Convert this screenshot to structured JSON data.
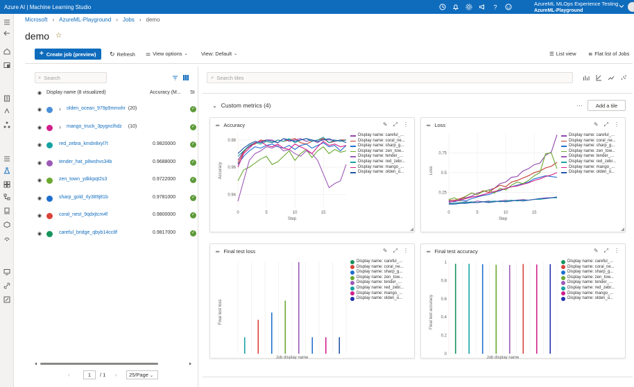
{
  "app": {
    "title": "Azure AI | Machine Learning Studio",
    "account_line1": "AzureML MLOps Experience Testing",
    "account_line2": "AzureML-Playground"
  },
  "breadcrumb": [
    "Microsoft",
    "AzureML-Playground",
    "Jobs",
    "demo"
  ],
  "page": {
    "title": "demo"
  },
  "toolbar": {
    "create_job": "Create job (preview)",
    "refresh": "Refresh",
    "view_options": "View options",
    "view_default": "View: Default",
    "list_view": "List view",
    "flat_list": "Flat list of Jobs"
  },
  "left": {
    "search_placeholder": "Search",
    "col_name": "Display name (8 visualized)",
    "col_accuracy": "Accuracy (M...",
    "col_status": "St",
    "rows": [
      {
        "name": "olden_ocean_979p9mmxhr",
        "count": "(20)",
        "accuracy": "",
        "color": "#4a90d9",
        "group": true
      },
      {
        "name": "mango_truck_3pygnclhdz",
        "count": "(10)",
        "accuracy": "",
        "color": "#d11f8b",
        "group": true
      },
      {
        "name": "red_zebra_kmdn8xyl7t",
        "count": "",
        "accuracy": "0.9820000",
        "color": "#17a2a2",
        "group": false
      },
      {
        "name": "tender_hat_p8wshvs34b",
        "count": "",
        "accuracy": "0.9688000",
        "color": "#9b59b6",
        "group": false
      },
      {
        "name": "zen_town_ydkkpqt2s3",
        "count": "",
        "accuracy": "0.9722000",
        "color": "#6aa830",
        "group": false
      },
      {
        "name": "sharp_gold_rly389j81b",
        "count": "",
        "accuracy": "0.9781000",
        "color": "#1f6fcf",
        "group": false
      },
      {
        "name": "coral_nest_9qdxjtcm4f",
        "count": "",
        "accuracy": "0.9800000",
        "color": "#d9433a",
        "group": false
      },
      {
        "name": "careful_bridge_qbyb14cc8f",
        "count": "",
        "accuracy": "0.9817000",
        "color": "#16945c",
        "group": false
      }
    ],
    "pager": {
      "page": "1",
      "of": "/ 1",
      "per_page": "25/Page"
    }
  },
  "right": {
    "search_placeholder": "Search tiles",
    "section_title": "Custom metrics (4)",
    "add_tile": "Add a tile"
  },
  "icons": {
    "topbar": [
      "history-icon",
      "bell-icon",
      "gear-icon",
      "megaphone-icon",
      "help-icon",
      "smiley-icon"
    ]
  },
  "legend_labels_lines": [
    {
      "label": "Display name: careful_...",
      "color": "#8e44ad"
    },
    {
      "label": "Display name: coral_ne...",
      "color": "#c0392b"
    },
    {
      "label": "Display name: sharp_g...",
      "color": "#1f6fcf"
    },
    {
      "label": "Display name: zen_tow...",
      "color": "#6aa830"
    },
    {
      "label": "Display name: tender_...",
      "color": "#9b59b6"
    },
    {
      "label": "Display name: red_zebr...",
      "color": "#17a2a2"
    },
    {
      "label": "Display name: mango_...",
      "color": "#d11f8b"
    },
    {
      "label": "Display name: olden_o...",
      "color": "#2255aa"
    }
  ],
  "legend_labels_lines_b": [
    {
      "label": "Display name: careful_...",
      "color": "#8e44ad"
    },
    {
      "label": "Display name: coral_ne...",
      "color": "#c0392b"
    },
    {
      "label": "Display name: sharp_g...",
      "color": "#1f6fcf"
    },
    {
      "label": "Display name: zen_tow...",
      "color": "#6aa830"
    },
    {
      "label": "Display name: tender_...",
      "color": "#9b59b6"
    },
    {
      "label": "Display name: red_zebr...",
      "color": "#17a2a2"
    },
    {
      "label": "Display name: mango_...",
      "color": "#d11f8b"
    },
    {
      "label": "Display name: olden_o...",
      "color": "#2255aa"
    }
  ],
  "legend_labels_bars": [
    {
      "label": "Display name: careful_...",
      "color": "#16945c"
    },
    {
      "label": "Display name: coral_ne...",
      "color": "#d9433a"
    },
    {
      "label": "Display name: sharp_g...",
      "color": "#1f6fcf"
    },
    {
      "label": "Display name: zen_tow...",
      "color": "#6aa830"
    },
    {
      "label": "Display name: tender_...",
      "color": "#9b59b6"
    },
    {
      "label": "Display name: red_zebr...",
      "color": "#17a2a2"
    },
    {
      "label": "Display name: mango_...",
      "color": "#d11f8b"
    },
    {
      "label": "Display name: olden_o...",
      "color": "#2233aa"
    }
  ],
  "legend_labels_bars_b": [
    {
      "label": "Display name: careful_...",
      "color": "#16945c"
    },
    {
      "label": "Display name: coral_ne...",
      "color": "#d9433a"
    },
    {
      "label": "Display name: sharp_g...",
      "color": "#1f6fcf"
    },
    {
      "label": "Display name: zen_tow...",
      "color": "#6aa830"
    },
    {
      "label": "Display name: tender_...",
      "color": "#9b59b6"
    },
    {
      "label": "Display name: red_zebr...",
      "color": "#17a2a2"
    },
    {
      "label": "Display name: mango_...",
      "color": "#d11f8b"
    },
    {
      "label": "Display name: olden_o...",
      "color": "#2233aa"
    }
  ],
  "chart_data": [
    {
      "type": "line",
      "title": "Accuracy",
      "xlabel": "Step",
      "ylabel": "Accuracy",
      "xlim": [
        0,
        19
      ],
      "ylim": [
        0.93,
        0.985
      ],
      "xticks": [
        0,
        5,
        10,
        15
      ],
      "yticks": [
        0.94,
        0.96,
        0.98
      ],
      "xtick_labels": [
        "0",
        "5",
        "10",
        "15"
      ],
      "ytick_labels": [
        "0.94",
        "0.96",
        "0.98"
      ],
      "series": [
        {
          "color": "#8e44ad",
          "values": [
            0.965,
            0.972,
            0.975,
            0.978,
            0.979,
            0.98,
            0.98,
            0.978,
            0.981,
            0.979,
            0.98,
            0.981,
            0.979,
            0.98,
            0.978,
            0.981,
            0.98,
            0.98,
            0.979,
            0.98
          ]
        },
        {
          "color": "#c0392b",
          "values": [
            0.963,
            0.971,
            0.976,
            0.977,
            0.98,
            0.979,
            0.978,
            0.98,
            0.979,
            0.98,
            0.981,
            0.978,
            0.977,
            0.979,
            0.98,
            0.981,
            0.978,
            0.979,
            0.98,
            0.98
          ]
        },
        {
          "color": "#1f6fcf",
          "values": [
            0.962,
            0.968,
            0.972,
            0.975,
            0.974,
            0.976,
            0.977,
            0.975,
            0.974,
            0.976,
            0.973,
            0.976,
            0.977,
            0.974,
            0.976,
            0.978,
            0.975,
            0.976,
            0.972,
            0.976
          ]
        },
        {
          "color": "#6aa830",
          "values": [
            0.95,
            0.958,
            0.96,
            0.963,
            0.966,
            0.968,
            0.962,
            0.964,
            0.968,
            0.972,
            0.965,
            0.97,
            0.973,
            0.967,
            0.972,
            0.975,
            0.97,
            0.973,
            0.971,
            0.972
          ]
        },
        {
          "color": "#9b59b6",
          "values": [
            0.935,
            0.95,
            0.965,
            0.97,
            0.972,
            0.975,
            0.974,
            0.976,
            0.972,
            0.973,
            0.97,
            0.968,
            0.972,
            0.97,
            0.965,
            0.955,
            0.945,
            0.948,
            0.95,
            0.962
          ]
        },
        {
          "color": "#17a2a2",
          "values": [
            0.968,
            0.972,
            0.976,
            0.978,
            0.977,
            0.979,
            0.978,
            0.98,
            0.979,
            0.981,
            0.978,
            0.98,
            0.981,
            0.979,
            0.98,
            0.982,
            0.978,
            0.98,
            0.979,
            0.98
          ]
        },
        {
          "color": "#d11f8b",
          "values": [
            0.96,
            0.97,
            0.974,
            0.978,
            0.979,
            0.976,
            0.975,
            0.977,
            0.974,
            0.973,
            0.977,
            0.975,
            0.973,
            0.97,
            0.975,
            0.979,
            0.976,
            0.977,
            0.975,
            0.976
          ]
        },
        {
          "color": "#2255aa",
          "values": [
            0.97,
            0.974,
            0.977,
            0.979,
            0.978,
            0.98,
            0.979,
            0.978,
            0.981,
            0.98,
            0.979,
            0.98,
            0.981,
            0.98,
            0.979,
            0.98,
            0.981,
            0.979,
            0.98,
            0.978
          ]
        }
      ]
    },
    {
      "type": "line",
      "title": "Loss",
      "xlabel": "Step",
      "ylabel": "Loss",
      "xlim": [
        0,
        19
      ],
      "ylim": [
        0.05,
        1.0
      ],
      "xticks": [
        0,
        5,
        10,
        15
      ],
      "yticks": [
        0.25,
        0.5,
        0.75
      ],
      "xtick_labels": [
        "0",
        "5",
        "10",
        "15"
      ],
      "ytick_labels": [
        "0.25",
        "0.5",
        "0.75"
      ],
      "series": [
        {
          "color": "#8e44ad",
          "values": [
            0.14,
            0.13,
            0.16,
            0.18,
            0.2,
            0.24,
            0.26,
            0.28,
            0.3,
            0.36,
            0.38,
            0.44,
            0.45,
            0.52,
            0.55,
            0.6,
            0.62,
            0.72,
            0.76,
            0.98
          ]
        },
        {
          "color": "#c0392b",
          "values": [
            0.15,
            0.15,
            0.17,
            0.2,
            0.24,
            0.22,
            0.27,
            0.25,
            0.3,
            0.34,
            0.32,
            0.38,
            0.4,
            0.43,
            0.46,
            0.5,
            0.52,
            0.56,
            0.58,
            0.63
          ]
        },
        {
          "color": "#1f6fcf",
          "values": [
            0.14,
            0.13,
            0.15,
            0.14,
            0.17,
            0.19,
            0.21,
            0.22,
            0.25,
            0.27,
            0.3,
            0.32,
            0.34,
            0.36,
            0.38,
            0.42,
            0.44,
            0.46,
            0.45,
            0.44
          ]
        },
        {
          "color": "#6aa830",
          "values": [
            0.16,
            0.18,
            0.14,
            0.2,
            0.24,
            0.22,
            0.26,
            0.28,
            0.24,
            0.3,
            0.28,
            0.34,
            0.38,
            0.36,
            0.4,
            0.46,
            0.5,
            0.74,
            0.75,
            0.55
          ]
        },
        {
          "color": "#9b59b6",
          "values": [
            0.12,
            0.11,
            0.12,
            0.13,
            0.12,
            0.14,
            0.13,
            0.14,
            0.13,
            0.14,
            0.15,
            0.14,
            0.15,
            0.16,
            0.15,
            0.16,
            0.17,
            0.18,
            0.18,
            0.19
          ]
        },
        {
          "color": "#17a2a2",
          "values": [
            0.11,
            0.11,
            0.12,
            0.12,
            0.13,
            0.12,
            0.13,
            0.13,
            0.14,
            0.13,
            0.14,
            0.15,
            0.14,
            0.15,
            0.15,
            0.16,
            0.16,
            0.17,
            0.18,
            0.18
          ]
        },
        {
          "color": "#d11f8b",
          "values": [
            0.13,
            0.14,
            0.15,
            0.17,
            0.19,
            0.2,
            0.22,
            0.24,
            0.26,
            0.28,
            0.3,
            0.32,
            0.33,
            0.35,
            0.37,
            0.4,
            0.42,
            0.45,
            0.47,
            0.5
          ]
        },
        {
          "color": "#2255aa",
          "values": [
            0.1,
            0.1,
            0.11,
            0.11,
            0.12,
            0.12,
            0.13,
            0.12,
            0.13,
            0.14,
            0.13,
            0.14,
            0.15,
            0.14,
            0.15,
            0.16,
            0.17,
            0.17,
            0.18,
            0.19
          ]
        }
      ]
    },
    {
      "type": "bar",
      "title": "Final test loss",
      "xlabel": "Job display name",
      "ylabel": "Final test loss",
      "ylim": [
        0,
        1.0
      ],
      "series": [
        {
          "color": "#17a2a2",
          "value": 0.18
        },
        {
          "color": "#d9433a",
          "value": 0.37
        },
        {
          "color": "#1f6fcf",
          "value": 0.45
        },
        {
          "color": "#6aa830",
          "value": 0.58
        },
        {
          "color": "#9b59b6",
          "value": 1.0
        },
        {
          "color": "#1f6fcf",
          "value": 0.18
        },
        {
          "color": "#d11f8b",
          "value": 0.18
        },
        {
          "color": "#2255aa",
          "value": 0.18
        }
      ]
    },
    {
      "type": "bar",
      "title": "Final test accuracy",
      "xlabel": "Job display name",
      "ylabel": "Final test accuracy",
      "ylim": [
        0,
        1.0
      ],
      "yticks": [
        0,
        0.2,
        0.4,
        0.6,
        0.8,
        1
      ],
      "ytick_labels": [
        "0",
        "0.2",
        "0.4",
        "0.6",
        "0.8",
        "1"
      ],
      "series": [
        {
          "color": "#16945c",
          "value": 0.982
        },
        {
          "color": "#17a2a2",
          "value": 0.982
        },
        {
          "color": "#1f6fcf",
          "value": 0.978
        },
        {
          "color": "#6aa830",
          "value": 0.972
        },
        {
          "color": "#9b59b6",
          "value": 0.969
        },
        {
          "color": "#d9433a",
          "value": 0.98
        },
        {
          "color": "#d11f8b",
          "value": 0.975
        },
        {
          "color": "#2233aa",
          "value": 0.978
        }
      ]
    }
  ]
}
